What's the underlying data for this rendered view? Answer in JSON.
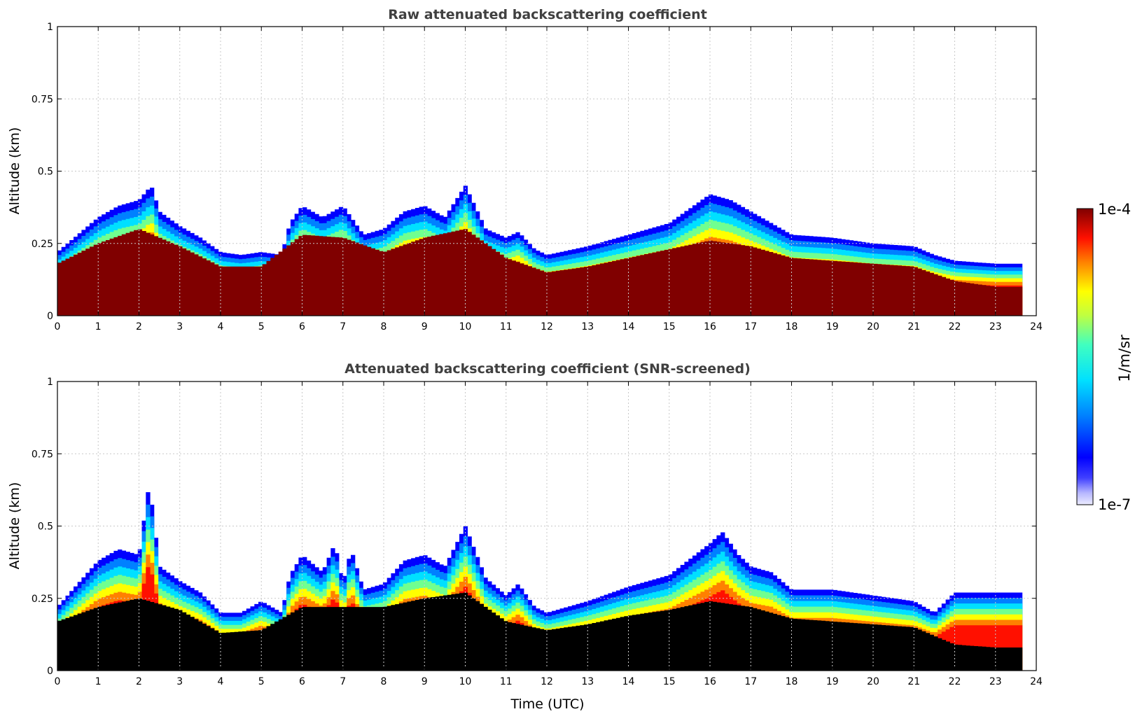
{
  "chart_data": [
    {
      "type": "heatmap",
      "title": "Raw attenuated backscattering coefficient",
      "xlabel": "",
      "ylabel": "Altitude (km)",
      "xlim": [
        0,
        24
      ],
      "ylim": [
        0,
        1
      ],
      "x_ticks": [
        "0",
        "1",
        "2",
        "3",
        "4",
        "5",
        "6",
        "7",
        "8",
        "9",
        "10",
        "11",
        "12",
        "13",
        "14",
        "15",
        "16",
        "17",
        "18",
        "19",
        "20",
        "21",
        "22",
        "23",
        "24"
      ],
      "y_ticks": [
        "0",
        "0.25",
        "0.5",
        "0.75",
        "1"
      ],
      "grid": true,
      "data_end_time": 23.65,
      "layer_top_km": [
        [
          0,
          0.22
        ],
        [
          0.5,
          0.28
        ],
        [
          1,
          0.34
        ],
        [
          1.5,
          0.38
        ],
        [
          2,
          0.4
        ],
        [
          2.3,
          0.45
        ],
        [
          2.5,
          0.36
        ],
        [
          3,
          0.31
        ],
        [
          3.5,
          0.27
        ],
        [
          4,
          0.22
        ],
        [
          4.5,
          0.21
        ],
        [
          5,
          0.22
        ],
        [
          5.5,
          0.21
        ],
        [
          5.7,
          0.32
        ],
        [
          6,
          0.38
        ],
        [
          6.5,
          0.34
        ],
        [
          7,
          0.38
        ],
        [
          7.5,
          0.28
        ],
        [
          8,
          0.3
        ],
        [
          8.5,
          0.36
        ],
        [
          9,
          0.38
        ],
        [
          9.5,
          0.34
        ],
        [
          10,
          0.45
        ],
        [
          10.5,
          0.3
        ],
        [
          11,
          0.27
        ],
        [
          11.3,
          0.29
        ],
        [
          11.7,
          0.23
        ],
        [
          12,
          0.21
        ],
        [
          13,
          0.24
        ],
        [
          14,
          0.28
        ],
        [
          15,
          0.32
        ],
        [
          16,
          0.42
        ],
        [
          16.5,
          0.4
        ],
        [
          17,
          0.36
        ],
        [
          17.5,
          0.32
        ],
        [
          18,
          0.28
        ],
        [
          19,
          0.27
        ],
        [
          20,
          0.25
        ],
        [
          21,
          0.24
        ],
        [
          21.5,
          0.21
        ],
        [
          22,
          0.19
        ],
        [
          23,
          0.18
        ],
        [
          23.65,
          0.18
        ]
      ],
      "dense_layer_top_km": [
        [
          0,
          0.18
        ],
        [
          1,
          0.25
        ],
        [
          2,
          0.3
        ],
        [
          3,
          0.24
        ],
        [
          4,
          0.17
        ],
        [
          5,
          0.17
        ],
        [
          6,
          0.28
        ],
        [
          7,
          0.27
        ],
        [
          8,
          0.22
        ],
        [
          9,
          0.27
        ],
        [
          10,
          0.3
        ],
        [
          11,
          0.2
        ],
        [
          12,
          0.15
        ],
        [
          13,
          0.17
        ],
        [
          14,
          0.2
        ],
        [
          15,
          0.23
        ],
        [
          16,
          0.26
        ],
        [
          17,
          0.24
        ],
        [
          18,
          0.2
        ],
        [
          19,
          0.19
        ],
        [
          20,
          0.18
        ],
        [
          21,
          0.17
        ],
        [
          22,
          0.12
        ],
        [
          23,
          0.1
        ],
        [
          23.65,
          0.1
        ]
      ],
      "colorbar": {
        "min_label": "1e-7",
        "max_label": "1e-4",
        "label": "1/m/sr",
        "scale": "log",
        "min": 1e-07,
        "max": 0.0001
      }
    },
    {
      "type": "heatmap",
      "title": "Attenuated backscattering coefficient (SNR-screened)",
      "xlabel": "Time (UTC)",
      "ylabel": "Altitude (km)",
      "xlim": [
        0,
        24
      ],
      "ylim": [
        0,
        1
      ],
      "x_ticks": [
        "0",
        "1",
        "2",
        "3",
        "4",
        "5",
        "6",
        "7",
        "8",
        "9",
        "10",
        "11",
        "12",
        "13",
        "14",
        "15",
        "16",
        "17",
        "18",
        "19",
        "20",
        "21",
        "22",
        "23",
        "24"
      ],
      "y_ticks": [
        "0",
        "0.25",
        "0.5",
        "0.75",
        "1"
      ],
      "grid": true,
      "data_end_time": 23.65,
      "layer_top_km": [
        [
          0,
          0.22
        ],
        [
          0.5,
          0.3
        ],
        [
          1,
          0.38
        ],
        [
          1.5,
          0.42
        ],
        [
          2,
          0.4
        ],
        [
          2.25,
          0.65
        ],
        [
          2.5,
          0.36
        ],
        [
          3,
          0.31
        ],
        [
          3.5,
          0.27
        ],
        [
          4,
          0.2
        ],
        [
          4.5,
          0.2
        ],
        [
          5,
          0.24
        ],
        [
          5.5,
          0.2
        ],
        [
          5.7,
          0.33
        ],
        [
          6,
          0.4
        ],
        [
          6.5,
          0.34
        ],
        [
          6.8,
          0.44
        ],
        [
          7,
          0.3
        ],
        [
          7.2,
          0.42
        ],
        [
          7.5,
          0.28
        ],
        [
          8,
          0.3
        ],
        [
          8.5,
          0.38
        ],
        [
          9,
          0.4
        ],
        [
          9.5,
          0.36
        ],
        [
          10,
          0.5
        ],
        [
          10.5,
          0.32
        ],
        [
          11,
          0.26
        ],
        [
          11.3,
          0.3
        ],
        [
          11.7,
          0.22
        ],
        [
          12,
          0.2
        ],
        [
          13,
          0.24
        ],
        [
          14,
          0.29
        ],
        [
          15,
          0.33
        ],
        [
          16,
          0.44
        ],
        [
          16.3,
          0.48
        ],
        [
          16.7,
          0.4
        ],
        [
          17,
          0.36
        ],
        [
          17.5,
          0.34
        ],
        [
          18,
          0.28
        ],
        [
          19,
          0.28
        ],
        [
          20,
          0.26
        ],
        [
          21,
          0.24
        ],
        [
          21.5,
          0.2
        ],
        [
          22,
          0.27
        ],
        [
          23,
          0.27
        ],
        [
          23.65,
          0.27
        ]
      ],
      "dense_layer_top_km": [
        [
          0,
          0.17
        ],
        [
          1,
          0.22
        ],
        [
          2,
          0.25
        ],
        [
          3,
          0.21
        ],
        [
          4,
          0.13
        ],
        [
          5,
          0.14
        ],
        [
          6,
          0.22
        ],
        [
          7,
          0.22
        ],
        [
          8,
          0.22
        ],
        [
          9,
          0.25
        ],
        [
          10,
          0.27
        ],
        [
          11,
          0.17
        ],
        [
          12,
          0.14
        ],
        [
          13,
          0.16
        ],
        [
          14,
          0.19
        ],
        [
          15,
          0.21
        ],
        [
          16,
          0.24
        ],
        [
          17,
          0.22
        ],
        [
          18,
          0.18
        ],
        [
          19,
          0.17
        ],
        [
          20,
          0.16
        ],
        [
          21,
          0.15
        ],
        [
          22,
          0.09
        ],
        [
          23,
          0.08
        ],
        [
          23.65,
          0.08
        ]
      ],
      "colorbar": {
        "min_label": "1e-7",
        "max_label": "1e-4",
        "label": "1/m/sr",
        "scale": "log",
        "min": 1e-07,
        "max": 0.0001
      }
    }
  ]
}
